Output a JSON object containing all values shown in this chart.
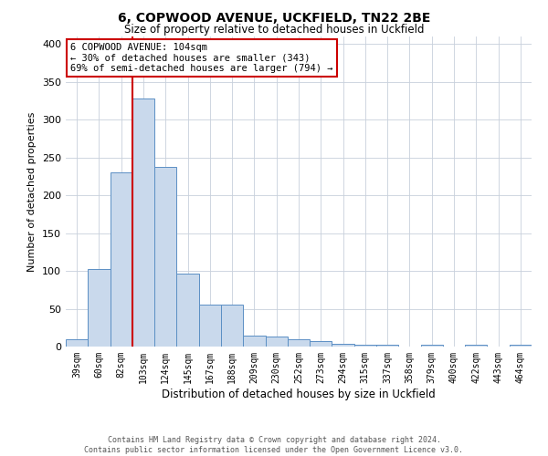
{
  "title": "6, COPWOOD AVENUE, UCKFIELD, TN22 2BE",
  "subtitle": "Size of property relative to detached houses in Uckfield",
  "xlabel": "Distribution of detached houses by size in Uckfield",
  "ylabel": "Number of detached properties",
  "bar_labels": [
    "39sqm",
    "60sqm",
    "82sqm",
    "103sqm",
    "124sqm",
    "145sqm",
    "167sqm",
    "188sqm",
    "209sqm",
    "230sqm",
    "252sqm",
    "273sqm",
    "294sqm",
    "315sqm",
    "337sqm",
    "358sqm",
    "379sqm",
    "400sqm",
    "422sqm",
    "443sqm",
    "464sqm"
  ],
  "bar_values": [
    10,
    102,
    230,
    328,
    238,
    97,
    55,
    55,
    15,
    13,
    10,
    7,
    4,
    3,
    2,
    0,
    3,
    0,
    3,
    0,
    3
  ],
  "bar_color": "#c9d9ec",
  "bar_edge_color": "#5b8fc4",
  "vline_x_index": 3,
  "vline_color": "#cc0000",
  "ylim": [
    0,
    410
  ],
  "yticks": [
    0,
    50,
    100,
    150,
    200,
    250,
    300,
    350,
    400
  ],
  "annotation_title": "6 COPWOOD AVENUE: 104sqm",
  "annotation_line1": "← 30% of detached houses are smaller (343)",
  "annotation_line2": "69% of semi-detached houses are larger (794) →",
  "annotation_box_color": "#ffffff",
  "annotation_box_edge": "#cc0000",
  "footer_line1": "Contains HM Land Registry data © Crown copyright and database right 2024.",
  "footer_line2": "Contains public sector information licensed under the Open Government Licence v3.0.",
  "background_color": "#ffffff",
  "grid_color": "#c8d0dc"
}
